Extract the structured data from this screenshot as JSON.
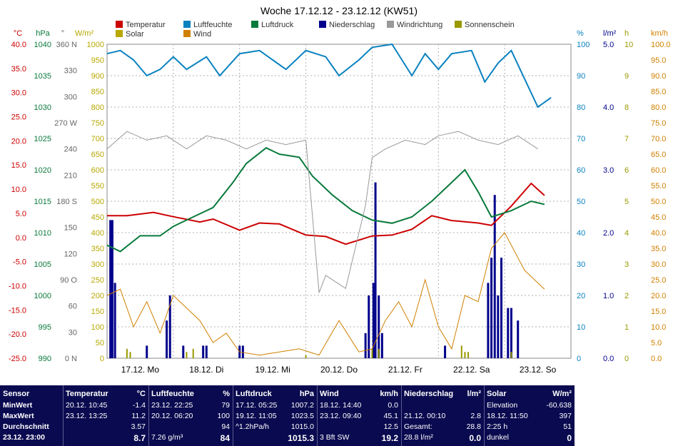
{
  "chart_data": {
    "type": "line",
    "title": "Woche 17.12.12 - 23.12.12 (KW51)",
    "x_labels": [
      "17.12. Mo",
      "18.12. Di",
      "19.12. Mi",
      "20.12. Do",
      "21.12. Fr",
      "22.12. Sa",
      "23.12. So"
    ],
    "legend": [
      {
        "name": "Temperatur",
        "color": "#cc0000"
      },
      {
        "name": "Luftfeuchte",
        "color": "#0a82c0"
      },
      {
        "name": "Luftdruck",
        "color": "#0a7a3c"
      },
      {
        "name": "Niederschlag",
        "color": "#00008b"
      },
      {
        "name": "Windrichtung",
        "color": "#999999"
      },
      {
        "name": "Sonnenschein",
        "color": "#999900"
      },
      {
        "name": "Solar",
        "color": "#b8a800"
      },
      {
        "name": "Wind",
        "color": "#d08000"
      }
    ],
    "axes_left": [
      {
        "unit": "°C",
        "color": "#cc0000",
        "ticks": [
          "40.0",
          "35.0",
          "30.0",
          "25.0",
          "20.0",
          "15.0",
          "10.0",
          "5.0",
          "0.0",
          "-5.0",
          "-10.0",
          "-15.0",
          "-20.0",
          "-25.0"
        ]
      },
      {
        "unit": "hPa",
        "color": "#0a7a3c",
        "ticks": [
          "1040",
          "1035",
          "1030",
          "1025",
          "1020",
          "1015",
          "1010",
          "1005",
          "1000",
          "995",
          "990"
        ]
      },
      {
        "unit": "°",
        "color": "#666666",
        "ticks": [
          "360 N",
          "330",
          "300",
          "270 W",
          "240",
          "210",
          "180 S",
          "150",
          "120",
          "90 O",
          "60",
          "30",
          "0 N"
        ]
      },
      {
        "unit": "W/m²",
        "color": "#b8a800",
        "ticks": [
          "1000",
          "950",
          "900",
          "850",
          "800",
          "750",
          "700",
          "650",
          "600",
          "550",
          "500",
          "450",
          "400",
          "350",
          "300",
          "250",
          "200",
          "150",
          "100",
          "50",
          "0"
        ]
      }
    ],
    "axes_right": [
      {
        "unit": "%",
        "color": "#0a82c0",
        "ticks": [
          "100",
          "90",
          "80",
          "70",
          "60",
          "50",
          "40",
          "30",
          "20",
          "10",
          "0"
        ]
      },
      {
        "unit": "l/m²",
        "color": "#00008b",
        "ticks": [
          "5.0",
          "4.0",
          "3.0",
          "2.0",
          "1.0",
          "0.0"
        ]
      },
      {
        "unit": "h",
        "color": "#999900",
        "ticks": [
          "10",
          "9",
          "8",
          "7",
          "6",
          "5",
          "4",
          "3",
          "2",
          "1",
          "0"
        ]
      },
      {
        "unit": "km/h",
        "color": "#d08000",
        "ticks": [
          "100.0",
          "95.0",
          "90.0",
          "85.0",
          "80.0",
          "75.0",
          "70.0",
          "65.0",
          "60.0",
          "55.0",
          "50.0",
          "45.0",
          "40.0",
          "35.0",
          "30.0",
          "25.0",
          "20.0",
          "15.0",
          "10.0",
          "5.0",
          "0.0"
        ]
      }
    ],
    "series": [
      {
        "name": "Temperatur",
        "color": "#cc0000",
        "x": [
          0,
          0.3,
          0.7,
          1.0,
          1.4,
          1.6,
          2.0,
          2.3,
          2.6,
          3.0,
          3.3,
          3.6,
          4.0,
          4.3,
          4.6,
          4.9,
          5.2,
          5.6,
          5.8,
          6.1,
          6.4,
          6.6
        ],
        "y": [
          4.5,
          4.5,
          5.2,
          4.3,
          3.2,
          3.8,
          1.5,
          3.0,
          2.8,
          0.5,
          0.2,
          -1.4,
          0.3,
          0.5,
          1.7,
          4.5,
          3.5,
          3.0,
          2.5,
          6.5,
          11.2,
          8.7
        ]
      },
      {
        "name": "Luftfeuchte",
        "color": "#0a82c0",
        "x": [
          0,
          0.2,
          0.4,
          0.6,
          0.8,
          1.0,
          1.2,
          1.5,
          1.7,
          2.0,
          2.3,
          2.5,
          2.7,
          3.0,
          3.3,
          3.5,
          3.8,
          4.0,
          4.3,
          4.6,
          4.8,
          5.0,
          5.2,
          5.5,
          5.7,
          5.9,
          6.1,
          6.3,
          6.5,
          6.7
        ],
        "y": [
          97,
          98,
          95,
          90,
          92,
          96,
          92,
          96,
          90,
          97,
          98,
          95,
          92,
          98,
          96,
          90,
          95,
          99,
          100,
          90,
          97,
          92,
          97,
          98,
          88,
          94,
          98,
          89,
          80,
          83
        ]
      },
      {
        "name": "Luftdruck",
        "color": "#0a7a3c",
        "x": [
          0,
          0.2,
          0.5,
          0.8,
          1.0,
          1.3,
          1.6,
          1.9,
          2.1,
          2.4,
          2.6,
          2.9,
          3.1,
          3.4,
          3.7,
          4.0,
          4.3,
          4.6,
          4.9,
          5.2,
          5.4,
          5.6,
          5.8,
          6.1,
          6.4,
          6.6
        ],
        "y": [
          1008,
          1007,
          1009.5,
          1009.5,
          1011,
          1012.5,
          1014,
          1018,
          1021,
          1023.5,
          1022.5,
          1022,
          1019,
          1016,
          1013.5,
          1012,
          1011.5,
          1012.5,
          1015,
          1018,
          1020,
          1016.5,
          1012.5,
          1013.5,
          1015,
          1014.5
        ]
      },
      {
        "name": "Windrichtung",
        "color": "#999999",
        "x": [
          0,
          0.3,
          0.6,
          0.9,
          1.2,
          1.5,
          1.8,
          2.1,
          2.4,
          2.7,
          3.0,
          3.2,
          3.3,
          3.6,
          3.9,
          4.0,
          4.2,
          4.5,
          4.8,
          5.0,
          5.3,
          5.6,
          5.9,
          6.2,
          6.5
        ],
        "y": [
          240,
          260,
          250,
          255,
          240,
          255,
          250,
          240,
          250,
          245,
          250,
          75,
          95,
          80,
          175,
          230,
          240,
          250,
          245,
          255,
          260,
          250,
          245,
          255,
          240
        ]
      },
      {
        "name": "Wind",
        "color": "#d08000",
        "x": [
          0,
          0.2,
          0.4,
          0.6,
          0.8,
          1.0,
          1.2,
          1.4,
          1.6,
          1.8,
          2.0,
          2.3,
          2.6,
          2.9,
          3.2,
          3.5,
          3.8,
          4.0,
          4.2,
          4.4,
          4.6,
          4.8,
          5.0,
          5.2,
          5.4,
          5.6,
          5.8,
          6.0,
          6.3,
          6.6
        ],
        "y": [
          20,
          22,
          10,
          18,
          8,
          20,
          16,
          12,
          5,
          8,
          2,
          1,
          2,
          3,
          1,
          12,
          2,
          3,
          12,
          18,
          10,
          25,
          10,
          3,
          20,
          18,
          35,
          40,
          28,
          22
        ]
      }
    ],
    "rain_bars": {
      "x": [
        0.05,
        0.08,
        0.12,
        0.6,
        0.9,
        0.95,
        1.15,
        1.45,
        1.5,
        2.0,
        2.05,
        3.9,
        3.95,
        4.02,
        4.05,
        4.1,
        4.15,
        5.1,
        5.75,
        5.8,
        5.85,
        5.9,
        5.95,
        6.05,
        6.1,
        6.2
      ],
      "y": [
        2.2,
        2.2,
        1.2,
        0.2,
        0.6,
        1.0,
        0.2,
        0.2,
        0.2,
        0.2,
        0.2,
        0.4,
        1.0,
        1.2,
        2.8,
        1.0,
        0.4,
        0.2,
        1.2,
        1.6,
        2.6,
        1.0,
        1.6,
        0.8,
        0.8,
        0.6
      ]
    },
    "solar_bars": {
      "x": [
        0.3,
        0.35,
        1.2,
        1.3,
        3.0,
        4.0,
        4.1,
        5.35,
        5.4,
        5.45,
        6.1
      ],
      "y": [
        0.3,
        0.2,
        0.2,
        0.3,
        0.1,
        0.3,
        0.3,
        0.4,
        0.2,
        0.2,
        0.2
      ]
    }
  },
  "panel": [
    {
      "title": "Sensor",
      "unit": "",
      "rows": [
        [
          "MinWert",
          "",
          ""
        ],
        [
          "MaxWert",
          "",
          ""
        ],
        [
          "Durchschnitt",
          "",
          ""
        ],
        [
          "23.12. 23:00",
          "",
          ""
        ]
      ]
    },
    {
      "title": "Temperatur",
      "unit": "°C",
      "rows": [
        [
          "20.12. 10:45",
          "",
          "-1.4"
        ],
        [
          "23.12. 13:25",
          "",
          "11.2"
        ],
        [
          "",
          "",
          "3.57"
        ],
        [
          "",
          "",
          "8.7"
        ]
      ]
    },
    {
      "title": "Luftfeuchte",
      "unit": "%",
      "rows": [
        [
          "23.12. 22:25",
          "",
          "79"
        ],
        [
          "20.12. 06:20",
          "",
          "100"
        ],
        [
          "",
          "",
          "94"
        ],
        [
          "7.26 g/m³",
          "",
          "84"
        ]
      ]
    },
    {
      "title": "Luftdruck",
      "unit": "hPa",
      "rows": [
        [
          "17.12. 05:25",
          "",
          "1007.2"
        ],
        [
          "19.12. 11:05",
          "",
          "1023.5"
        ],
        [
          "^1.2hPa/h",
          "",
          "1015.0"
        ],
        [
          "",
          "",
          "1015.3"
        ]
      ]
    },
    {
      "title": "Wind",
      "unit": "km/h",
      "rows": [
        [
          "18.12. 14:40",
          "",
          "0.0"
        ],
        [
          "23.12. 09:40",
          "",
          "45.1"
        ],
        [
          "",
          "",
          "12.5"
        ],
        [
          "3 Bft SW",
          "",
          "19.2"
        ]
      ]
    },
    {
      "title": "Niederschlag",
      "unit": "l/m²",
      "rows": [
        [
          "",
          "",
          ""
        ],
        [
          "21.12. 00:10",
          "",
          "2.8"
        ],
        [
          "Gesamt:",
          "",
          "28.8"
        ],
        [
          "28.8 l/m²",
          "",
          "0.0"
        ]
      ]
    },
    {
      "title": "Solar",
      "unit": "W/m²",
      "rows": [
        [
          "Elevation",
          "",
          "-60.638"
        ],
        [
          "18.12. 11:50",
          "",
          "397"
        ],
        [
          "2:25 h",
          "",
          "51"
        ],
        [
          "dunkel",
          "",
          "0"
        ]
      ]
    }
  ]
}
